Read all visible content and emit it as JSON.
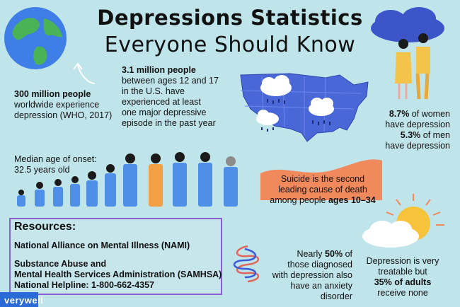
{
  "header": {
    "title_line1": "Depressions Statistics",
    "title_line2": "Everyone Should Know"
  },
  "stats": {
    "global": {
      "bold": "300 million people",
      "rest_line1": "worldwide experience",
      "rest_line2": "depression (WHO, 2017)"
    },
    "youth": {
      "bold": "3.1 million people",
      "lines": [
        "between ages 12 and 17",
        "in the U.S. have",
        "experienced at least",
        "one major depressive",
        "episode in the past year"
      ]
    },
    "gender": {
      "women_value": "8.7%",
      "women_text": "of women",
      "women_line2": "have depression",
      "men_value": "5.3%",
      "men_text": "of men",
      "men_line2": "have depression"
    },
    "onset": {
      "line1": "Median age of onset:",
      "line2": "32.5 years old"
    },
    "suicide": {
      "line1": "Suicide is the second",
      "line2": "leading cause of death",
      "line3_prefix": "among people",
      "line3_bold": "ages 10–34"
    },
    "anxiety": {
      "line1_prefix": "Nearly",
      "line1_bold": "50%",
      "line1_suffix": "of",
      "line2": "those diagnosed",
      "line3": "with depression also",
      "line4": "have an anxiety disorder"
    },
    "treatable": {
      "line1": "Depression is very",
      "line2": "treatable but",
      "line3_bold": "35% of adults",
      "line4": "receive none"
    }
  },
  "resources": {
    "heading": "Resources:",
    "nami": "National Alliance on Mental Illness (NAMI)",
    "samhsa_line1": "Substance Abuse and",
    "samhsa_line2": "Mental Health Services Administration (SAMHSA)",
    "helpline": "National Helpline: 1-800-662-4357"
  },
  "brand": {
    "logo": "verywell"
  },
  "colors": {
    "background": "#bfe4ea",
    "map_blue": "#4a67d8",
    "suicide_blob": "#f08a5d",
    "resources_border": "#8a5fd6",
    "figure_blue": "#4f8fe8",
    "sun": "#f6c33b"
  },
  "icons": [
    "globe-icon",
    "arrow-icon",
    "us-map-icon",
    "rain-cloud-icon",
    "couple-icon",
    "figures-growth-icon",
    "sun-cloud-icon",
    "scribble-icon"
  ]
}
